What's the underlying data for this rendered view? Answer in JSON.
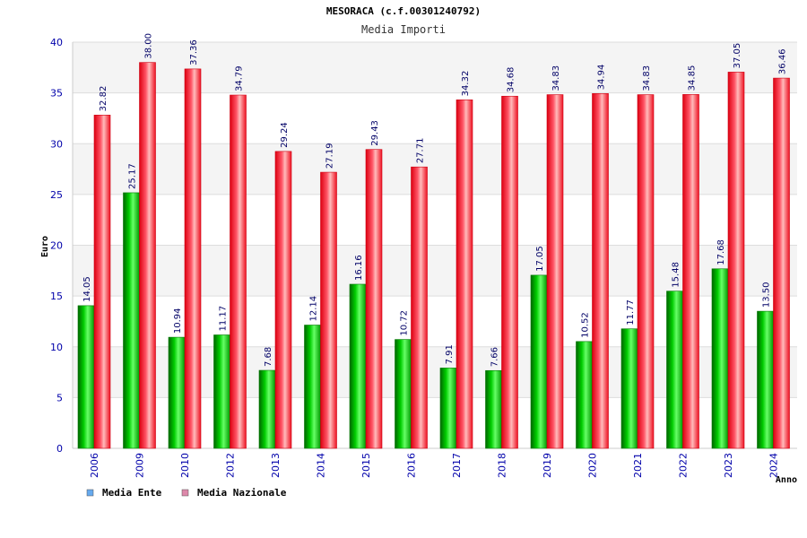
{
  "chart_data": {
    "type": "bar",
    "title": "MESORACA (c.f.00301240792)",
    "subtitle": "Media Importi",
    "ylabel": "Euro",
    "xlabel": "Anno",
    "ylim": [
      0,
      40
    ],
    "yticks": [
      0,
      5,
      10,
      15,
      20,
      25,
      30,
      35,
      40
    ],
    "grid": true,
    "legend_position": "bottom-left",
    "categories": [
      "2006",
      "2009",
      "2010",
      "2012",
      "2013",
      "2014",
      "2015",
      "2016",
      "2017",
      "2018",
      "2019",
      "2020",
      "2021",
      "2022",
      "2023",
      "2024"
    ],
    "series": [
      {
        "name": "Media Ente",
        "color": "#00bb00",
        "legend_color": "#66aaee",
        "values": [
          14.05,
          25.17,
          10.94,
          11.17,
          7.68,
          12.14,
          16.16,
          10.72,
          7.91,
          7.66,
          17.05,
          10.52,
          11.77,
          15.48,
          17.68,
          13.5
        ],
        "labels": [
          "14.05",
          "25.17",
          "10.94",
          "11.17",
          "7.68",
          "12.14",
          "16.16",
          "10.72",
          "7.91",
          "7.66",
          "17.05",
          "10.52",
          "11.77",
          "15.48",
          "17.68",
          "13.50"
        ]
      },
      {
        "name": "Media Nazionale",
        "color": "#ee1122",
        "legend_color": "#dd88aa",
        "values": [
          32.82,
          38.0,
          37.36,
          34.79,
          29.24,
          27.19,
          29.43,
          27.71,
          34.32,
          34.68,
          34.83,
          34.94,
          34.83,
          34.85,
          37.05,
          36.46
        ],
        "labels": [
          "32.82",
          "38.00",
          "37.36",
          "34.79",
          "29.24",
          "27.19",
          "29.43",
          "27.71",
          "34.32",
          "34.68",
          "34.83",
          "34.94",
          "34.83",
          "34.85",
          "37.05",
          "36.46"
        ]
      }
    ]
  }
}
